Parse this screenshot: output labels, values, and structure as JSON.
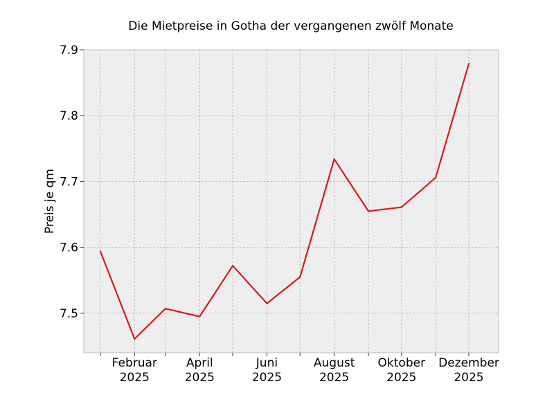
{
  "chart_data": {
    "type": "line",
    "title": "Die Mietpreise in Gotha der vergangenen zwölf Monate",
    "xlabel": "",
    "ylabel": "Preis je qm",
    "x": [
      "2025-01",
      "2025-02",
      "2025-03",
      "2025-04",
      "2025-05",
      "2025-06",
      "2025-07",
      "2025-08",
      "2025-09",
      "2025-10",
      "2025-11",
      "2025-12"
    ],
    "series": [
      {
        "values": [
          7.594,
          7.461,
          7.507,
          7.495,
          7.572,
          7.515,
          7.555,
          7.734,
          7.655,
          7.661,
          7.706,
          7.879
        ],
        "color": "#d7191c"
      }
    ],
    "x_tick_labels": [
      {
        "month": "Februar",
        "year": "2025"
      },
      {
        "month": "April",
        "year": "2025"
      },
      {
        "month": "Juni",
        "year": "2025"
      },
      {
        "month": "August",
        "year": "2025"
      },
      {
        "month": "Oktober",
        "year": "2025"
      },
      {
        "month": "Dezember",
        "year": "2025"
      }
    ],
    "y_tick_labels": [
      "7.5",
      "7.6",
      "7.7",
      "7.8",
      "7.9"
    ],
    "y_ticks": [
      7.5,
      7.6,
      7.7,
      7.8,
      7.9
    ],
    "ylim": [
      7.44,
      7.9
    ],
    "xlim": [
      "2024-12-17",
      "2025-12-28"
    ],
    "grid": true,
    "background": "#eeeeee",
    "frame_color": "#bcbcbc"
  }
}
